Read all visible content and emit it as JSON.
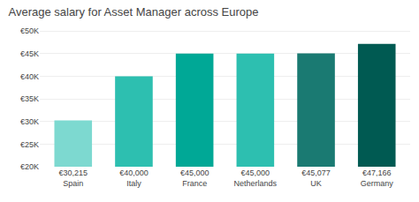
{
  "chart_data": {
    "type": "bar",
    "title": "Average salary for Asset Manager across Europe",
    "categories": [
      "Spain",
      "Italy",
      "France",
      "Netherlands",
      "UK",
      "Germany"
    ],
    "values": [
      30215,
      40000,
      45000,
      45000,
      45077,
      47166
    ],
    "value_labels": [
      "€30,215",
      "€40,000",
      "€45,000",
      "€45,000",
      "€45,077",
      "€47,166"
    ],
    "colors": [
      "#7dd9d0",
      "#2dbfb0",
      "#00a896",
      "#2dbfb0",
      "#1a7a72",
      "#005a52"
    ],
    "ylim": [
      20000,
      51000
    ],
    "yticks": [
      {
        "value": 20000,
        "label": "€20K"
      },
      {
        "value": 25000,
        "label": "€25K"
      },
      {
        "value": 30000,
        "label": "€30K"
      },
      {
        "value": 35000,
        "label": "€35K"
      },
      {
        "value": 40000,
        "label": "€40K"
      },
      {
        "value": 45000,
        "label": "€45K"
      },
      {
        "value": 50000,
        "label": "€50K"
      }
    ],
    "grid": true
  }
}
